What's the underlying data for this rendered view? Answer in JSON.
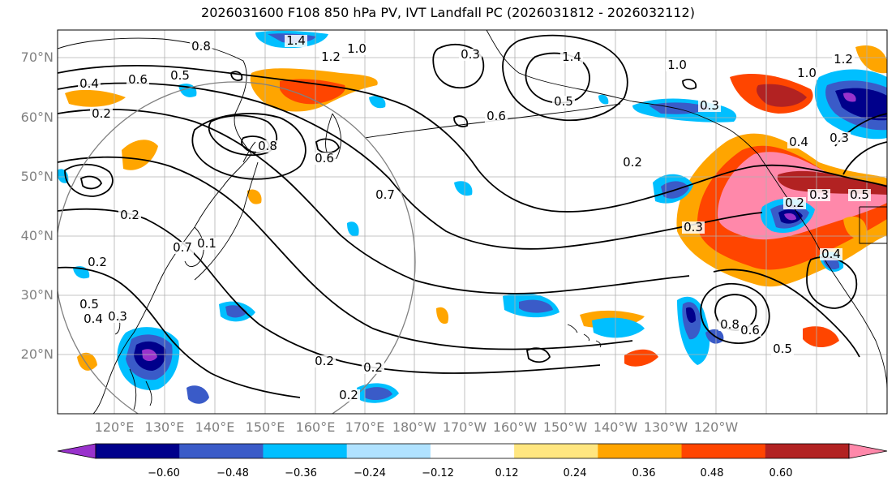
{
  "title": "2026031600 F108 850 hPa PV, IVT Landfall PC (2026031812 - 2026032112)",
  "lat_labels": [
    "70°N",
    "60°N",
    "50°N",
    "40°N",
    "30°N",
    "20°N"
  ],
  "lon_labels": [
    "120°E",
    "130°E",
    "140°E",
    "150°E",
    "160°E",
    "170°E",
    "180°W",
    "170°W",
    "160°W",
    "150°W",
    "140°W",
    "130°W",
    "120°W"
  ],
  "colorbar": {
    "ticks": [
      "−0.60",
      "−0.48",
      "−0.36",
      "−0.24",
      "−0.12",
      "0.12",
      "0.24",
      "0.36",
      "0.48",
      "0.60"
    ],
    "colors": [
      "#9932cc",
      "#00008b",
      "#3a5bc8",
      "#00bfff",
      "#b0e2ff",
      "#ffffff",
      "#ffe680",
      "#ffa500",
      "#ff4500",
      "#b22222",
      "#ff88aa"
    ]
  },
  "contour_labels": [
    "0.8",
    "1.4",
    "1.2",
    "1.0",
    "0.6",
    "0.5",
    "0.4",
    "0.3",
    "1.4",
    "1.0",
    "1.0",
    "1.2",
    "0.2",
    "0.6",
    "0.5",
    "0.3",
    "0.2",
    "0.8",
    "0.6",
    "0.7",
    "0.2",
    "0.2",
    "0.2",
    "0.5",
    "0.4",
    "0.3",
    "0.3",
    "0.2",
    "0.4",
    "0.3",
    "0.3",
    "0.4",
    "0.8",
    "0.6",
    "0.5",
    "0.2",
    "0.2",
    "0.1",
    "0.7",
    "0.5"
  ]
}
